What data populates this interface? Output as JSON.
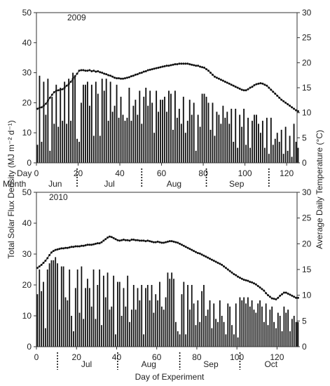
{
  "figure": {
    "ylabel_left": "Total Solar Flux Density (MJ m⁻² d⁻¹)",
    "ylabel_right": "Average Daily Temperature (°C)",
    "xlabel": "Day of Experiment"
  },
  "chart_data": [
    {
      "type": "bar",
      "title": "2009",
      "x_label_prefix": "Day",
      "month_label_prefix": "Month",
      "xlim": [
        0,
        125
      ],
      "xticks": [
        0,
        20,
        40,
        60,
        80,
        100,
        120
      ],
      "ylim": [
        0,
        50
      ],
      "yticks": [
        0,
        10,
        20,
        30,
        40,
        50
      ],
      "y2lim": [
        0,
        30
      ],
      "y2ticks": [
        0,
        5,
        10,
        15,
        20,
        25,
        30
      ],
      "months": [
        {
          "label": "Jun",
          "center": 9
        },
        {
          "label": "Jul",
          "center": 35
        },
        {
          "label": "Aug",
          "center": 66
        },
        {
          "label": "Sep",
          "center": 96
        }
      ],
      "month_dividers": [
        19.5,
        50.5,
        81.5,
        111.5
      ],
      "series": [
        {
          "kind": "bar",
          "values": [
            6,
            29,
            7,
            27,
            16,
            28,
            4,
            22,
            13,
            26,
            12,
            25,
            14,
            27,
            13,
            28,
            14,
            30,
            29,
            8,
            7,
            20,
            26,
            26,
            27,
            19,
            26,
            9,
            27,
            23,
            9,
            28,
            24,
            28,
            14,
            27,
            17,
            19,
            26,
            15,
            22,
            16,
            14,
            15,
            25,
            14,
            19,
            21,
            16,
            24,
            13,
            22,
            25,
            19,
            24,
            20,
            10,
            24,
            17,
            21,
            21,
            22,
            17,
            24,
            23,
            11,
            24,
            15,
            18,
            13,
            22,
            10,
            14,
            21,
            16,
            20,
            4,
            16,
            12,
            23,
            23,
            22,
            20,
            11,
            20,
            9,
            17,
            16,
            13,
            19,
            15,
            17,
            13,
            18,
            7,
            18,
            5,
            16,
            12,
            18,
            6,
            15,
            5,
            14,
            16,
            16,
            13,
            10,
            14,
            5,
            15,
            3,
            15,
            6,
            8,
            10,
            7,
            11,
            3,
            12,
            4,
            9,
            2,
            13,
            7,
            5
          ]
        },
        {
          "kind": "line",
          "axis": "right",
          "values": [
            10.8,
            11,
            11.1,
            11.4,
            11.8,
            12.4,
            13.0,
            13.6,
            14.1,
            14.4,
            14.5,
            14.6,
            14.7,
            15.0,
            15.4,
            15.7,
            16.2,
            16.8,
            17.3,
            17.8,
            18.4,
            18.5,
            18.5,
            18.4,
            18.4,
            18.5,
            18.3,
            18.4,
            18.2,
            18.3,
            18.1,
            18.0,
            17.8,
            17.7,
            17.5,
            17.4,
            17.2,
            17.0,
            16.9,
            16.9,
            16.8,
            16.8,
            16.9,
            17.0,
            17.1,
            17.3,
            17.4,
            17.6,
            17.7,
            17.9,
            18.0,
            18.2,
            18.3,
            18.5,
            18.6,
            18.7,
            18.8,
            18.9,
            19.0,
            19.1,
            19.2,
            19.3,
            19.4,
            19.4,
            19.5,
            19.6,
            19.7,
            19.7,
            19.8,
            19.8,
            19.8,
            19.8,
            19.8,
            19.7,
            19.6,
            19.5,
            19.4,
            19.4,
            19.2,
            19.1,
            19.0,
            18.7,
            18.4,
            18.0,
            17.6,
            17.2,
            17.0,
            16.8,
            16.6,
            16.4,
            16.2,
            16.0,
            15.8,
            15.6,
            15.4,
            15.2,
            15.0,
            14.8,
            14.6,
            14.5,
            14.5,
            14.7,
            15.0,
            15.2,
            15.5,
            15.7,
            15.8,
            15.9,
            15.8,
            15.6,
            15.4,
            15.0,
            14.6,
            14.2,
            13.8,
            13.4,
            13.0,
            12.6,
            12.3,
            12.0,
            11.7,
            11.4,
            11.1,
            10.8,
            10.5,
            10.3
          ]
        }
      ]
    },
    {
      "type": "bar",
      "title": "2010",
      "xlim": [
        0,
        130
      ],
      "xticks": [
        0,
        20,
        40,
        60,
        80,
        100,
        120
      ],
      "ylim": [
        0,
        50
      ],
      "yticks": [
        0,
        10,
        20,
        30,
        40,
        50
      ],
      "y2lim": [
        0,
        30
      ],
      "y2ticks": [
        0,
        5,
        10,
        15,
        20,
        25,
        30
      ],
      "months": [
        {
          "label": "Jul",
          "center": 25
        },
        {
          "label": "Aug",
          "center": 56
        },
        {
          "label": "Sep",
          "center": 87
        },
        {
          "label": "Oct",
          "center": 117
        }
      ],
      "month_dividers": [
        10.5,
        40.5,
        71.5,
        101.5
      ],
      "series": [
        {
          "kind": "bar",
          "values": [
            17,
            25,
            18,
            21,
            6,
            25,
            27,
            28,
            28,
            29,
            27,
            12,
            26,
            26,
            16,
            15,
            25,
            10,
            5,
            19,
            25,
            11,
            26,
            9,
            19,
            22,
            19,
            13,
            25,
            9,
            20,
            25,
            7,
            23,
            16,
            24,
            12,
            13,
            23,
            4,
            21,
            21,
            10,
            19,
            13,
            23,
            8,
            12,
            20,
            12,
            19,
            15,
            20,
            4,
            19,
            20,
            15,
            20,
            11,
            17,
            15,
            21,
            13,
            12,
            16,
            24,
            22,
            24,
            22,
            8,
            5,
            4,
            17,
            21,
            4,
            20,
            12,
            20,
            14,
            7,
            15,
            8,
            18,
            20,
            10,
            12,
            15,
            6,
            14,
            9,
            8,
            15,
            10,
            8,
            4,
            14,
            13,
            7,
            4,
            14,
            3,
            16,
            15,
            16,
            14,
            16,
            13,
            15,
            12,
            11,
            14,
            15,
            13,
            8,
            14,
            7,
            12,
            13,
            8,
            6,
            11,
            10,
            5,
            13,
            11,
            12,
            5,
            9,
            10,
            8,
            8
          ]
        },
        {
          "kind": "line",
          "axis": "right",
          "values": [
            15.3,
            15.6,
            15.9,
            16.3,
            16.7,
            17.2,
            17.8,
            18.3,
            18.6,
            18.8,
            18.9,
            19.0,
            19.1,
            19.1,
            19.2,
            19.2,
            19.3,
            19.4,
            19.4,
            19.5,
            19.5,
            19.5,
            19.6,
            19.6,
            19.7,
            19.8,
            19.8,
            19.8,
            19.9,
            20.0,
            20.1,
            20.1,
            20.3,
            20.6,
            20.9,
            21.2,
            21.4,
            21.3,
            21.1,
            20.9,
            20.7,
            20.6,
            20.7,
            20.8,
            20.7,
            20.7,
            20.6,
            20.8,
            20.8,
            20.7,
            20.7,
            20.6,
            20.6,
            20.6,
            20.5,
            20.6,
            20.5,
            20.4,
            20.3,
            20.3,
            20.4,
            20.3,
            20.2,
            20.2,
            20.3,
            20.4,
            20.5,
            20.5,
            20.4,
            20.3,
            20.2,
            20.0,
            19.8,
            19.6,
            19.4,
            19.2,
            19.0,
            18.8,
            18.6,
            18.4,
            18.2,
            18.1,
            17.9,
            17.7,
            17.5,
            17.3,
            17.1,
            16.9,
            16.7,
            16.5,
            16.3,
            16.1,
            15.9,
            15.6,
            15.3,
            15.0,
            14.7,
            14.4,
            14.1,
            13.9,
            13.6,
            13.4,
            13.2,
            13.0,
            12.9,
            12.8,
            12.6,
            12.5,
            12.3,
            12.1,
            11.8,
            11.5,
            11.2,
            10.9,
            10.4,
            10.0,
            9.7,
            9.4,
            9.3,
            9.2,
            9.5,
            9.9,
            10.2,
            10.5,
            10.5,
            10.3,
            10.1,
            9.9,
            9.7,
            9.5,
            9.5
          ]
        }
      ]
    }
  ]
}
